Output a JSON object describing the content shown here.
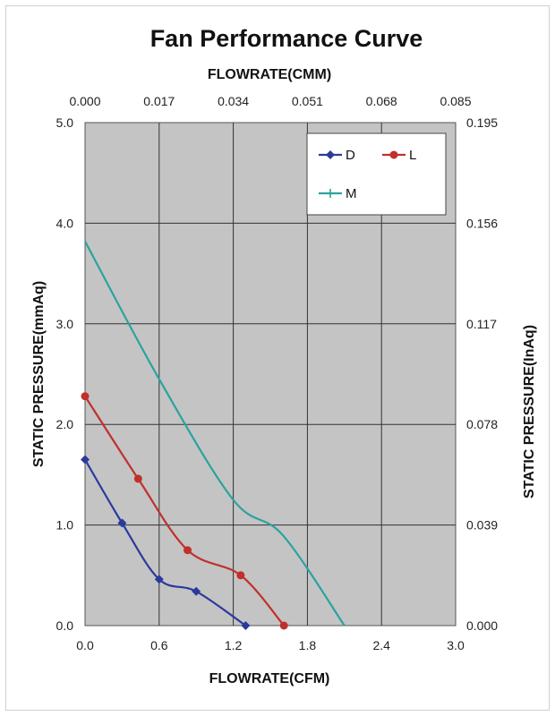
{
  "chart_data": {
    "type": "line",
    "title": "Fan Performance Curve",
    "xlabel": "FLOWRATE(CFM)",
    "x2label": "FLOWRATE(CMM)",
    "ylabel": "STATIC PRESSURE(mmAq)",
    "y2label": "STATIC PRESSURE(InAq)",
    "xlim": [
      0,
      3.0
    ],
    "ylim": [
      0,
      5.0
    ],
    "x_ticks": [
      "0.0",
      "0.6",
      "1.2",
      "1.8",
      "2.4",
      "3.0"
    ],
    "x2_ticks": [
      "0.000",
      "0.017",
      "0.034",
      "0.051",
      "0.068",
      "0.085"
    ],
    "y_ticks": [
      "0.0",
      "1.0",
      "2.0",
      "3.0",
      "4.0",
      "5.0"
    ],
    "y2_ticks": [
      "0.000",
      "0.039",
      "0.078",
      "0.117",
      "0.156",
      "0.195"
    ],
    "grid": true,
    "legend_position": "top-right",
    "plot_background": "#c4c4c4",
    "series": [
      {
        "name": "D",
        "color": "#2a3a9c",
        "marker": "diamond",
        "x": [
          0.0,
          0.3,
          0.6,
          0.9,
          1.3
        ],
        "y": [
          1.65,
          1.02,
          0.46,
          0.34,
          0.0
        ]
      },
      {
        "name": "L",
        "color": "#c0302c",
        "marker": "circle",
        "x": [
          0.0,
          0.43,
          0.83,
          1.26,
          1.61
        ],
        "y": [
          2.28,
          1.46,
          0.75,
          0.5,
          0.0
        ]
      },
      {
        "name": "M",
        "color": "#2aa39f",
        "marker": "plus",
        "x": [
          0.0,
          0.6,
          1.2,
          1.6,
          2.1
        ],
        "y": [
          3.82,
          2.45,
          1.25,
          0.9,
          0.0
        ],
        "markers_shown": false
      }
    ]
  }
}
